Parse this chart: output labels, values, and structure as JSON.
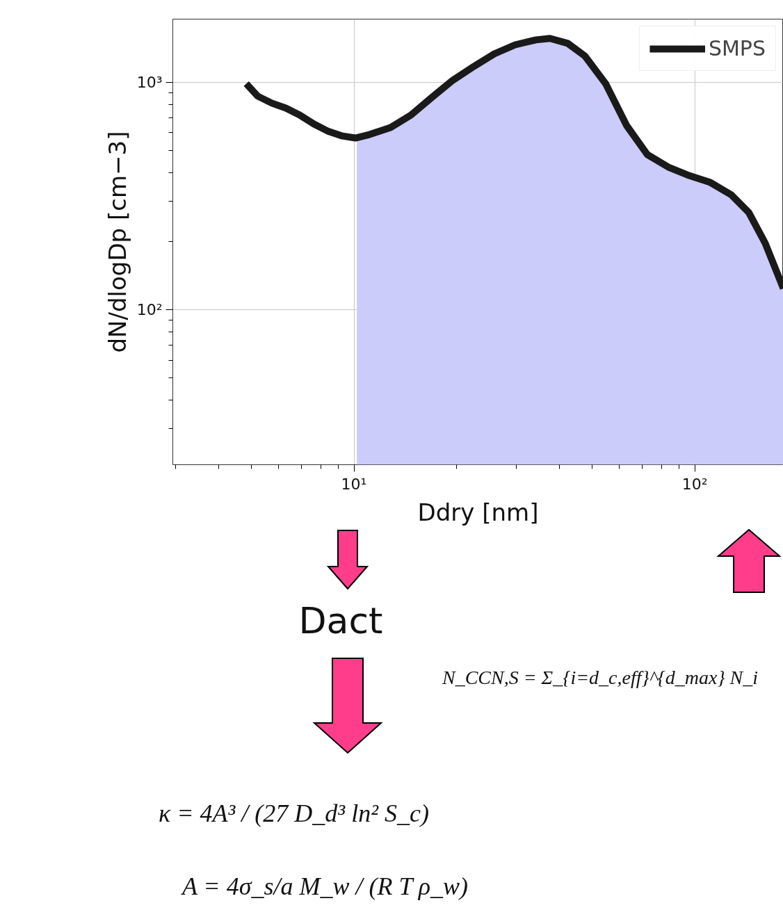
{
  "chart_data": {
    "type": "line",
    "xlabel": "Ddry [nm]",
    "ylabel": "dN/dlogDp [cm−3]",
    "series": [
      {
        "type": "area",
        "color": "#ccccfa",
        "x": [
          10.2,
          11.1,
          12.8,
          14.7,
          16.9,
          19.5,
          22.5,
          25.8,
          29.7,
          34.2,
          37.6,
          42.4,
          47.6,
          54.8,
          63.1,
          72.6,
          83.6,
          96.3,
          111,
          128,
          144,
          161,
          182
        ],
        "values": [
          569,
          589,
          632,
          718,
          857,
          1021,
          1176,
          1334,
          1462,
          1537,
          1560,
          1484,
          1307,
          986,
          646,
          481,
          424,
          389,
          363,
          320,
          268,
          196,
          124
        ]
      },
      {
        "name": "SMPS",
        "color": "#1a1a1a",
        "x": [
          4.83,
          5.22,
          5.74,
          6.31,
          6.93,
          7.62,
          8.36,
          9.19,
          10.1,
          11.1,
          12.8,
          14.7,
          16.9,
          19.5,
          22.5,
          25.8,
          29.7,
          34.2,
          37.6,
          42.4,
          47.6,
          54.8,
          63.1,
          72.6,
          83.6,
          96.3,
          111,
          128,
          144,
          161,
          182
        ],
        "values": [
          986,
          869,
          810,
          770,
          718,
          656,
          611,
          582,
          569,
          589,
          632,
          718,
          857,
          1021,
          1176,
          1334,
          1462,
          1537,
          1560,
          1484,
          1307,
          986,
          646,
          481,
          424,
          389,
          363,
          320,
          268,
          196,
          124
        ]
      }
    ],
    "xlim": [
      2.94,
      182
    ],
    "ylim": [
      20.8,
      1897
    ],
    "xticks": [
      {
        "value": 10,
        "label": "10¹"
      },
      {
        "value": 100,
        "label": "10²"
      }
    ],
    "yticks": [
      {
        "value": 100,
        "label": "10²"
      },
      {
        "value": 1000,
        "label": "10³"
      }
    ],
    "log": "xy",
    "grid": true,
    "legend": "top right",
    "annotations": [
      "Dact",
      "N_CCN,S = Σ_{i=d_c,eff}^{d_max} N_i",
      "κ = 4A³ / (27 D_d³ ln² S_c)",
      "A = 4σ_s/a M_w / (R T ρ_w)"
    ]
  }
}
